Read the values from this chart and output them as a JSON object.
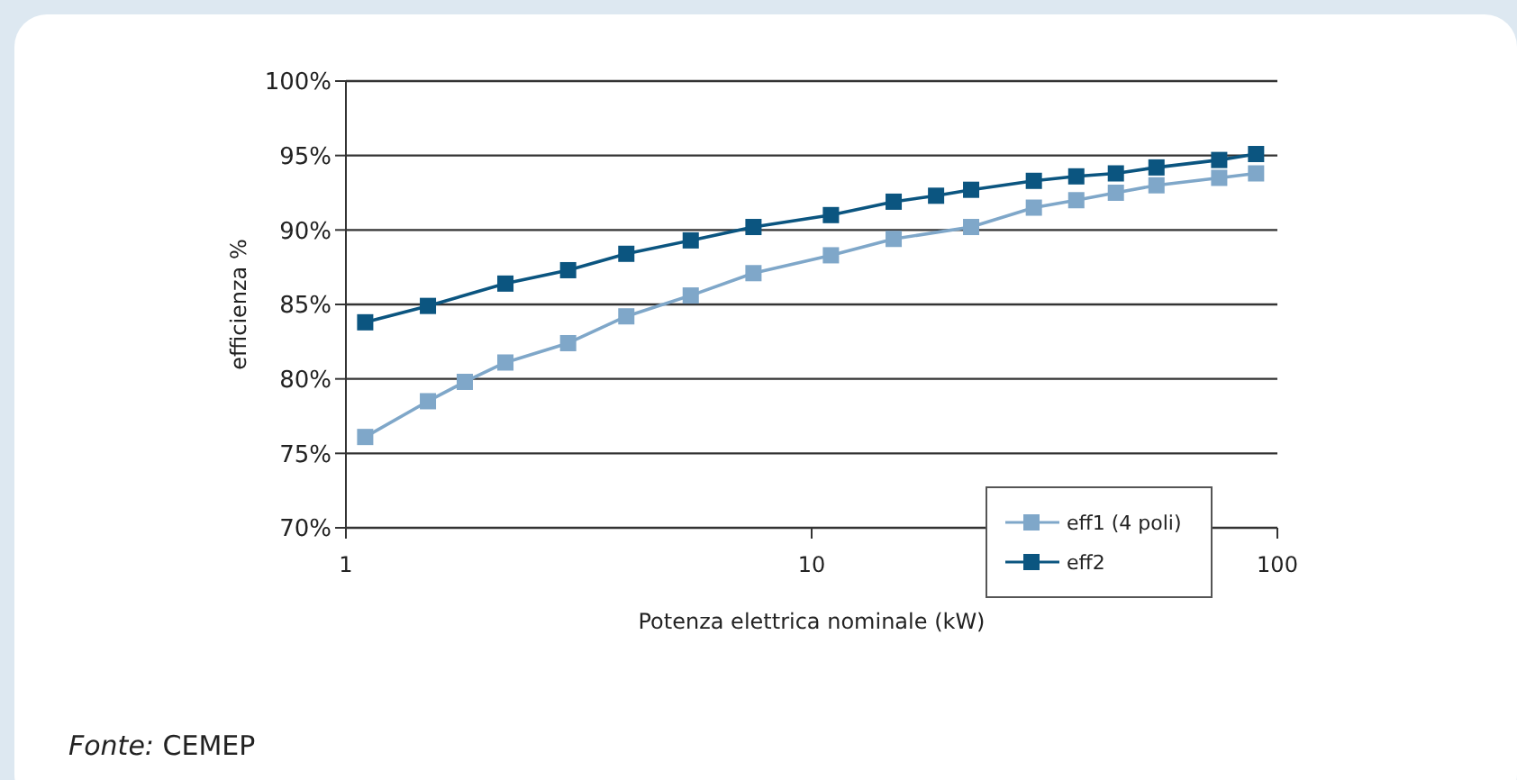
{
  "chart_data": {
    "type": "line",
    "xlabel": "Potenza elettrica nominale (kW)",
    "ylabel": "efficienza %",
    "log": "x",
    "xlim": [
      1,
      100
    ],
    "xticks": [
      1,
      10,
      100
    ],
    "ylim": [
      70,
      100
    ],
    "yticks": [
      {
        "value": 70,
        "label": "70%"
      },
      {
        "value": 75,
        "label": "75%"
      },
      {
        "value": 80,
        "label": "80%"
      },
      {
        "value": 85,
        "label": "85%"
      },
      {
        "value": 90,
        "label": "90%"
      },
      {
        "value": 95,
        "label": "95%"
      },
      {
        "value": 100,
        "label": "100%"
      }
    ],
    "grid": "y",
    "legend": "bottom right",
    "marker": "square",
    "line_style": "solid",
    "annotations": [
      "Fonte: CEMEP"
    ],
    "series": [
      {
        "name": "eff2",
        "color": "#0b5580",
        "x": [
          1.1,
          1.5,
          2.2,
          3,
          4,
          5.5,
          7.5,
          11,
          15,
          18.5,
          22,
          30,
          37,
          45,
          55,
          75,
          90
        ],
        "values": [
          83.8,
          84.9,
          86.4,
          87.3,
          88.4,
          89.3,
          90.2,
          91.0,
          91.9,
          92.3,
          92.7,
          93.3,
          93.6,
          93.8,
          94.2,
          94.7,
          95.1
        ]
      },
      {
        "name": "eff1 (4 poli)",
        "color": "#7fa7c9",
        "x": [
          1.1,
          1.5,
          1.8,
          2.2,
          3,
          4,
          5.5,
          7.5,
          11,
          15,
          22,
          30,
          37,
          45,
          55,
          75,
          90
        ],
        "values": [
          76.1,
          78.5,
          79.8,
          81.1,
          82.4,
          84.2,
          85.6,
          87.1,
          88.3,
          89.4,
          90.2,
          91.5,
          92.0,
          92.5,
          93.0,
          93.5,
          93.8
        ]
      }
    ]
  }
}
